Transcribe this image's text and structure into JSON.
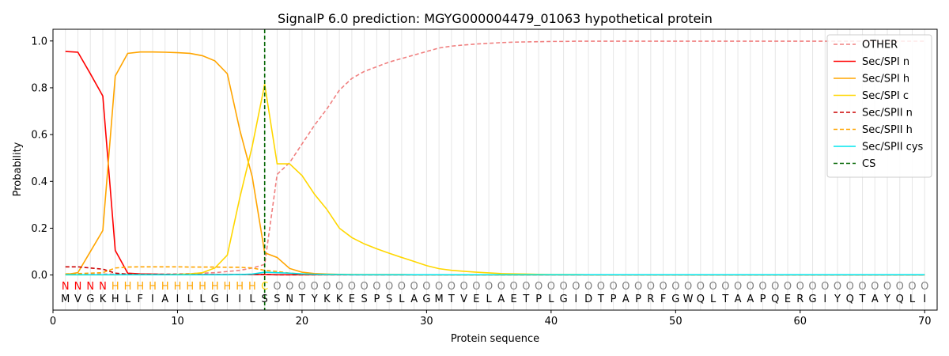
{
  "chart_data": {
    "type": "line",
    "title": "SignalP 6.0 prediction: MGYG000004479_01063 hypothetical protein",
    "xlabel": "Protein sequence",
    "ylabel": "Probability",
    "xlim": [
      0,
      71
    ],
    "ylim": [
      -0.15,
      1.05
    ],
    "xticks": [
      0,
      10,
      20,
      30,
      40,
      50,
      60,
      70
    ],
    "yticks": [
      0.0,
      0.2,
      0.4,
      0.6,
      0.8,
      1.0
    ],
    "sequence": "MVGKHLFIAILLGIILSSNTYKKESPSLAGMTVELAETPLGIDTPAPRFGWQLTAAPQERGIYQTAYQLI",
    "labels": "NNNNHHHHHHHHHHHHCOOOOOOOOOOOOOOOOOOOOOOOOOOOOOOOOOOOOOOOOOOOOOOOOOOOOO",
    "label_colors": {
      "N": "#ff0000",
      "H": "#ffa500",
      "C": "#ffd700",
      "O": "#808080"
    },
    "cs_position": 17,
    "legend_position": "top-right",
    "series": [
      {
        "name": "OTHER",
        "color": "#f08080",
        "dash": true,
        "values": [
          0.003,
          0.003,
          0.003,
          0.004,
          0.004,
          0.004,
          0.004,
          0.004,
          0.004,
          0.005,
          0.006,
          0.008,
          0.01,
          0.015,
          0.02,
          0.03,
          0.045,
          0.43,
          0.48,
          0.56,
          0.64,
          0.71,
          0.79,
          0.84,
          0.87,
          0.89,
          0.91,
          0.925,
          0.94,
          0.955,
          0.97,
          0.978,
          0.983,
          0.987,
          0.99,
          0.993,
          0.995,
          0.996,
          0.997,
          0.998,
          0.998,
          0.999,
          0.999,
          0.999,
          0.999,
          0.999,
          0.999,
          0.999,
          0.999,
          0.999,
          0.999,
          0.999,
          0.999,
          0.999,
          0.999,
          0.999,
          0.999,
          0.999,
          0.999,
          0.999,
          0.999,
          0.999,
          0.999,
          0.999,
          0.999,
          0.999,
          0.999,
          0.999,
          0.999,
          0.999
        ]
      },
      {
        "name": "Sec/SPI n",
        "color": "#ff0000",
        "dash": false,
        "values": [
          0.955,
          0.952,
          0.86,
          0.765,
          0.105,
          0.008,
          0.005,
          0.004,
          0.003,
          0.003,
          0.003,
          0.002,
          0.002,
          0.002,
          0.002,
          0.002,
          0.002,
          0.001,
          0.001,
          0.001,
          0.001,
          0.001,
          0.001,
          0.001,
          0.001,
          0.001,
          0.001,
          0.001,
          0.001,
          0.001,
          0.001,
          0.001,
          0.001,
          0.001,
          0.001,
          0.001,
          0.001,
          0.001,
          0.001,
          0.001,
          0.001,
          0.001,
          0.001,
          0.001,
          0.001,
          0.001,
          0.001,
          0.001,
          0.001,
          0.001,
          0.001,
          0.001,
          0.001,
          0.001,
          0.001,
          0.001,
          0.001,
          0.001,
          0.001,
          0.001,
          0.001,
          0.001,
          0.001,
          0.001,
          0.001,
          0.001,
          0.001,
          0.001,
          0.001,
          0.001
        ]
      },
      {
        "name": "Sec/SPI h",
        "color": "#ffa500",
        "dash": false,
        "values": [
          0.002,
          0.01,
          0.1,
          0.19,
          0.85,
          0.947,
          0.953,
          0.953,
          0.952,
          0.95,
          0.947,
          0.937,
          0.915,
          0.86,
          0.62,
          0.42,
          0.095,
          0.075,
          0.028,
          0.012,
          0.006,
          0.004,
          0.003,
          0.002,
          0.002,
          0.002,
          0.002,
          0.002,
          0.001,
          0.001,
          0.001,
          0.001,
          0.001,
          0.001,
          0.001,
          0.001,
          0.001,
          0.001,
          0.001,
          0.001,
          0.001,
          0.001,
          0.001,
          0.001,
          0.001,
          0.001,
          0.001,
          0.001,
          0.001,
          0.001,
          0.001,
          0.001,
          0.001,
          0.001,
          0.001,
          0.001,
          0.001,
          0.001,
          0.001,
          0.001,
          0.001,
          0.001,
          0.001,
          0.001,
          0.001,
          0.001,
          0.001,
          0.001,
          0.001,
          0.001
        ]
      },
      {
        "name": "Sec/SPI c",
        "color": "#ffd700",
        "dash": false,
        "values": [
          0.001,
          0.001,
          0.001,
          0.001,
          0.001,
          0.002,
          0.002,
          0.002,
          0.002,
          0.003,
          0.005,
          0.01,
          0.03,
          0.085,
          0.33,
          0.55,
          0.815,
          0.475,
          0.475,
          0.425,
          0.345,
          0.28,
          0.2,
          0.16,
          0.133,
          0.112,
          0.093,
          0.075,
          0.058,
          0.04,
          0.027,
          0.02,
          0.016,
          0.012,
          0.009,
          0.006,
          0.005,
          0.004,
          0.003,
          0.002,
          0.002,
          0.002,
          0.001,
          0.001,
          0.001,
          0.001,
          0.001,
          0.001,
          0.001,
          0.001,
          0.001,
          0.001,
          0.001,
          0.001,
          0.001,
          0.001,
          0.001,
          0.001,
          0.001,
          0.001,
          0.001,
          0.001,
          0.001,
          0.001,
          0.001,
          0.001,
          0.001,
          0.001,
          0.001,
          0.001
        ]
      },
      {
        "name": "Sec/SPII n",
        "color": "#cc0000",
        "dash": true,
        "values": [
          0.035,
          0.035,
          0.03,
          0.025,
          0.008,
          0.004,
          0.003,
          0.003,
          0.003,
          0.002,
          0.002,
          0.002,
          0.002,
          0.002,
          0.002,
          0.002,
          0.002,
          0.001,
          0.001,
          0.001,
          0.001,
          0.001,
          0.001,
          0.001,
          0.001,
          0.001,
          0.001,
          0.001,
          0.001,
          0.001,
          0.001,
          0.001,
          0.001,
          0.001,
          0.001,
          0.001,
          0.001,
          0.001,
          0.001,
          0.001,
          0.001,
          0.001,
          0.001,
          0.001,
          0.001,
          0.001,
          0.001,
          0.001,
          0.001,
          0.001,
          0.001,
          0.001,
          0.001,
          0.001,
          0.001,
          0.001,
          0.001,
          0.001,
          0.001,
          0.001,
          0.001,
          0.001,
          0.001,
          0.001,
          0.001,
          0.001,
          0.001,
          0.001,
          0.001,
          0.001
        ]
      },
      {
        "name": "Sec/SPII h",
        "color": "#ffa500",
        "dash": true,
        "values": [
          0.005,
          0.006,
          0.008,
          0.01,
          0.03,
          0.034,
          0.035,
          0.035,
          0.035,
          0.035,
          0.034,
          0.034,
          0.034,
          0.033,
          0.033,
          0.03,
          0.02,
          0.015,
          0.008,
          0.004,
          0.003,
          0.002,
          0.002,
          0.002,
          0.001,
          0.001,
          0.001,
          0.001,
          0.001,
          0.001,
          0.001,
          0.001,
          0.001,
          0.001,
          0.001,
          0.001,
          0.001,
          0.001,
          0.001,
          0.001,
          0.001,
          0.001,
          0.001,
          0.001,
          0.001,
          0.001,
          0.001,
          0.001,
          0.001,
          0.001,
          0.001,
          0.001,
          0.001,
          0.001,
          0.001,
          0.001,
          0.001,
          0.001,
          0.001,
          0.001,
          0.001,
          0.001,
          0.001,
          0.001,
          0.001,
          0.001,
          0.001,
          0.001,
          0.001,
          0.001
        ]
      },
      {
        "name": "Sec/SPII cys",
        "color": "#00e5ee",
        "dash": false,
        "values": [
          0.001,
          0.001,
          0.001,
          0.001,
          0.001,
          0.001,
          0.001,
          0.001,
          0.001,
          0.001,
          0.001,
          0.001,
          0.001,
          0.001,
          0.002,
          0.004,
          0.012,
          0.01,
          0.008,
          0.005,
          0.003,
          0.002,
          0.002,
          0.001,
          0.001,
          0.001,
          0.001,
          0.001,
          0.001,
          0.001,
          0.001,
          0.001,
          0.001,
          0.001,
          0.001,
          0.001,
          0.001,
          0.001,
          0.001,
          0.001,
          0.001,
          0.001,
          0.001,
          0.001,
          0.001,
          0.001,
          0.001,
          0.001,
          0.001,
          0.001,
          0.001,
          0.001,
          0.001,
          0.001,
          0.001,
          0.001,
          0.001,
          0.001,
          0.001,
          0.001,
          0.001,
          0.001,
          0.001,
          0.001,
          0.001,
          0.001,
          0.001,
          0.001,
          0.001,
          0.001
        ]
      }
    ],
    "legend": [
      {
        "name": "OTHER",
        "color": "#f08080",
        "dash": true
      },
      {
        "name": "Sec/SPI n",
        "color": "#ff0000",
        "dash": false
      },
      {
        "name": "Sec/SPI h",
        "color": "#ffa500",
        "dash": false
      },
      {
        "name": "Sec/SPI c",
        "color": "#ffd700",
        "dash": false
      },
      {
        "name": "Sec/SPII n",
        "color": "#cc0000",
        "dash": true
      },
      {
        "name": "Sec/SPII h",
        "color": "#ffa500",
        "dash": true
      },
      {
        "name": "Sec/SPII cys",
        "color": "#00e5ee",
        "dash": false
      },
      {
        "name": "CS",
        "color": "#006400",
        "dash": true
      }
    ]
  }
}
